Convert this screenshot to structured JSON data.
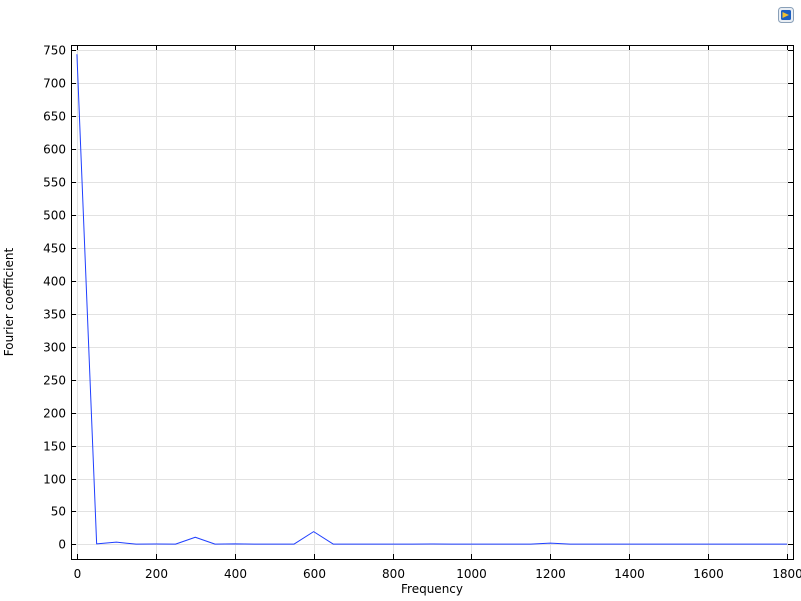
{
  "chart_data": {
    "type": "line",
    "title": "",
    "xlabel": "Frequency",
    "ylabel": "Fourier coefficient",
    "xlim": [
      -15,
      1815
    ],
    "ylim": [
      -22,
      757
    ],
    "x_ticks": [
      0,
      200,
      400,
      600,
      800,
      1000,
      1200,
      1400,
      1600,
      1800
    ],
    "y_ticks": [
      0,
      50,
      100,
      150,
      200,
      250,
      300,
      350,
      400,
      450,
      500,
      550,
      600,
      650,
      700,
      750
    ],
    "grid": true,
    "series": [
      {
        "color": "#1f3fff",
        "x": [
          0,
          50,
          100,
          150,
          200,
          250,
          300,
          350,
          400,
          450,
          500,
          550,
          600,
          650,
          700,
          750,
          800,
          850,
          900,
          950,
          1000,
          1050,
          1100,
          1150,
          1200,
          1250,
          1300,
          1350,
          1400,
          1450,
          1500,
          1550,
          1600,
          1650,
          1700,
          1750,
          1800
        ],
        "y": [
          743,
          1,
          3.5,
          0.5,
          0.8,
          0.5,
          11,
          0.5,
          1,
          0.5,
          0.5,
          0.5,
          19.5,
          0.5,
          0.5,
          0.5,
          0.5,
          0.5,
          0.8,
          0.5,
          0.5,
          0.5,
          0.5,
          0.5,
          2,
          0.5,
          0.5,
          0.5,
          0.5,
          0.5,
          0.5,
          0.5,
          0.5,
          0.5,
          0.5,
          0.5,
          0.5
        ]
      }
    ]
  }
}
